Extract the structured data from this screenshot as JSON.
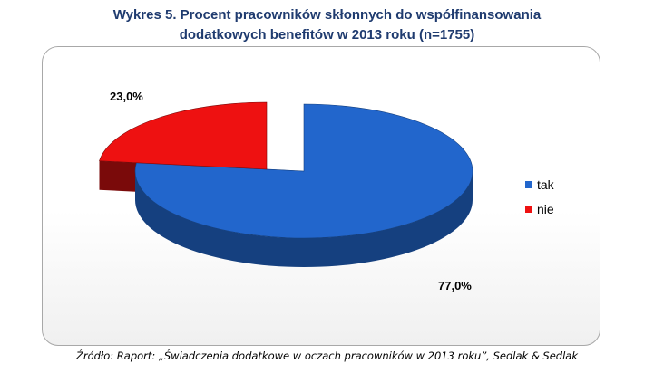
{
  "title": {
    "line1": "Wykres 5. Procent pracowników skłonnych do współfinansowania",
    "line2": "dodatkowych benefitów w 2013 roku (n=1755)"
  },
  "source": "Źródło: Raport: „Świadczenia dodatkowe w oczach pracowników w 2013 roku”, Sedlak & Sedlak",
  "chart_data": {
    "type": "pie",
    "variant": "3d-exploded",
    "categories": [
      "tak",
      "nie"
    ],
    "values": [
      77.0,
      23.0
    ],
    "labels": [
      "77,0%",
      "23,0%"
    ],
    "colors": [
      "#2266cc",
      "#ee1111"
    ],
    "side_colors": [
      "#15407f",
      "#7a0a0a"
    ],
    "legend": {
      "position": "right",
      "entries": [
        "tak",
        "nie"
      ]
    }
  }
}
